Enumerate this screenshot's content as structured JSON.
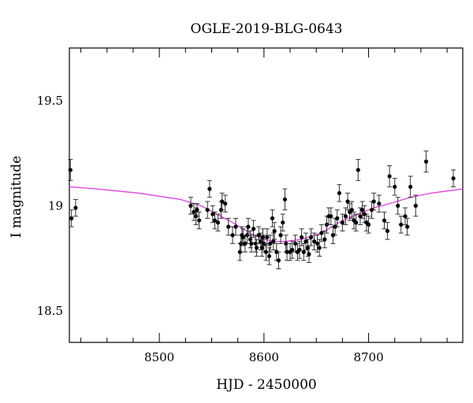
{
  "chart_data": {
    "type": "scatter",
    "title": "OGLE-2019-BLG-0643",
    "xlabel": "HJD - 2450000",
    "ylabel": "I magnitude",
    "xlim": [
      8414,
      8790
    ],
    "ylim": [
      19.75,
      18.35
    ],
    "y_inverted": true,
    "x_ticks": [
      8500,
      8600,
      8700
    ],
    "x_tick_labels": [
      "8500",
      "8600",
      "8700"
    ],
    "y_ticks": [
      18.5,
      19,
      19.5
    ],
    "y_tick_labels": [
      "18.5",
      "19",
      "19.5"
    ],
    "grid": false,
    "colors": {
      "points": "#000000",
      "model": "#e040e0",
      "axes": "#000000"
    },
    "series": [
      {
        "kind": "points_with_errorbars",
        "x": [
          8415,
          8416,
          8420,
          8530,
          8533,
          8535,
          8536,
          8538,
          8546,
          8548,
          8551,
          8553,
          8556,
          8559,
          8560,
          8563,
          8566,
          8570,
          8573,
          8577,
          8578,
          8579,
          8580,
          8582,
          8584,
          8585,
          8587,
          8588,
          8590,
          8592,
          8593,
          8595,
          8597,
          8598,
          8599,
          8600,
          8602,
          8603,
          8605,
          8606,
          8608,
          8609,
          8610,
          8612,
          8614,
          8616,
          8618,
          8620,
          8621,
          8622,
          8625,
          8627,
          8630,
          8632,
          8634,
          8636,
          8638,
          8640,
          8642,
          8643,
          8645,
          8648,
          8651,
          8653,
          8655,
          8658,
          8660,
          8662,
          8664,
          8666,
          8668,
          8670,
          8672,
          8675,
          8678,
          8680,
          8682,
          8684,
          8686,
          8688,
          8690,
          8692,
          8694,
          8696,
          8698,
          8700,
          8703,
          8705,
          8710,
          8715,
          8718,
          8720,
          8725,
          8728,
          8731,
          8735,
          8737,
          8740,
          8745,
          8755,
          8781
        ],
        "y": [
          19.17,
          18.94,
          18.99,
          19.0,
          18.97,
          18.95,
          18.98,
          18.93,
          18.98,
          19.08,
          18.96,
          18.93,
          18.92,
          18.98,
          19.02,
          19.01,
          18.9,
          18.86,
          18.9,
          18.78,
          18.82,
          18.86,
          18.85,
          18.82,
          18.86,
          18.9,
          18.84,
          18.82,
          18.89,
          18.82,
          18.8,
          18.86,
          18.83,
          18.8,
          18.85,
          18.82,
          18.78,
          18.85,
          18.76,
          18.82,
          18.94,
          18.83,
          18.88,
          18.78,
          18.74,
          18.86,
          18.92,
          19.03,
          18.82,
          18.78,
          18.78,
          18.79,
          18.82,
          18.78,
          18.79,
          18.85,
          18.78,
          18.83,
          18.8,
          18.77,
          18.85,
          18.83,
          18.82,
          18.8,
          18.87,
          18.84,
          18.91,
          18.95,
          18.95,
          18.86,
          18.9,
          18.94,
          19.06,
          18.92,
          18.95,
          19.02,
          18.97,
          18.98,
          18.93,
          18.92,
          19.17,
          18.95,
          18.98,
          18.96,
          18.92,
          18.91,
          18.98,
          19.02,
          19.01,
          18.93,
          18.88,
          19.14,
          19.09,
          19.0,
          18.91,
          18.95,
          18.9,
          19.09,
          19.0,
          19.21,
          19.13
        ],
        "yerr": [
          0.05,
          0.04,
          0.04,
          0.04,
          0.04,
          0.04,
          0.03,
          0.04,
          0.04,
          0.04,
          0.04,
          0.04,
          0.04,
          0.04,
          0.04,
          0.04,
          0.04,
          0.04,
          0.04,
          0.04,
          0.04,
          0.04,
          0.04,
          0.04,
          0.04,
          0.04,
          0.04,
          0.04,
          0.04,
          0.04,
          0.04,
          0.04,
          0.04,
          0.04,
          0.04,
          0.04,
          0.04,
          0.04,
          0.04,
          0.04,
          0.04,
          0.04,
          0.04,
          0.04,
          0.04,
          0.04,
          0.04,
          0.05,
          0.04,
          0.04,
          0.04,
          0.04,
          0.04,
          0.04,
          0.04,
          0.04,
          0.04,
          0.04,
          0.04,
          0.04,
          0.04,
          0.04,
          0.04,
          0.04,
          0.04,
          0.04,
          0.04,
          0.04,
          0.04,
          0.04,
          0.04,
          0.04,
          0.04,
          0.04,
          0.04,
          0.04,
          0.04,
          0.04,
          0.04,
          0.04,
          0.05,
          0.04,
          0.04,
          0.04,
          0.04,
          0.04,
          0.04,
          0.04,
          0.04,
          0.04,
          0.04,
          0.05,
          0.04,
          0.04,
          0.04,
          0.04,
          0.04,
          0.05,
          0.05,
          0.05,
          0.04
        ]
      },
      {
        "kind": "model_curve",
        "x": [
          8414,
          8440,
          8460,
          8480,
          8500,
          8520,
          8540,
          8555,
          8570,
          8580,
          8590,
          8600,
          8610,
          8620,
          8628,
          8636,
          8645,
          8655,
          8665,
          8675,
          8690,
          8705,
          8720,
          8740,
          8760,
          8775,
          8790
        ],
        "y": [
          19.09,
          19.08,
          19.07,
          19.06,
          19.045,
          19.03,
          19.0,
          18.96,
          18.92,
          18.89,
          18.86,
          18.84,
          18.83,
          18.83,
          18.835,
          18.84,
          18.855,
          18.87,
          18.9,
          18.93,
          18.96,
          18.99,
          19.01,
          19.04,
          19.06,
          19.07,
          19.08
        ]
      }
    ]
  }
}
